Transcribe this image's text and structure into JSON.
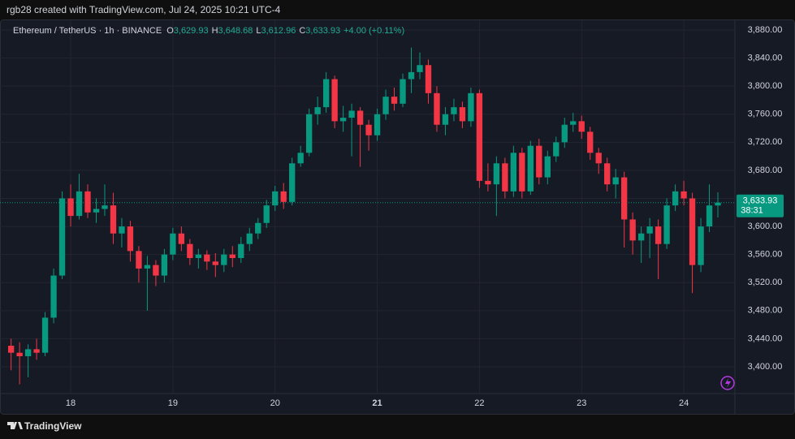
{
  "credit": "rgb28 created with TradingView.com, Jul 24, 2025 10:21 UTC-4",
  "brand": "TradingView",
  "chart_data": {
    "type": "candlestick",
    "symbol": "Ethereum / TetherUS · 1h · BINANCE",
    "legend": [
      {
        "key": "O",
        "value": "3,629.93"
      },
      {
        "key": "H",
        "value": "3,648.68"
      },
      {
        "key": "L",
        "value": "3,612.96"
      },
      {
        "key": "C",
        "value": "3,633.93"
      }
    ],
    "change": "+4.00 (+0.11%)",
    "up_color": "#089981",
    "down_color": "#f23645",
    "xlim": [
      -1.3,
      85
    ],
    "xticks": [
      {
        "value": 7,
        "label": "18"
      },
      {
        "value": 19,
        "label": "19"
      },
      {
        "value": 31,
        "label": "20"
      },
      {
        "value": 43,
        "label": "21"
      },
      {
        "value": 55,
        "label": "22"
      },
      {
        "value": 67,
        "label": "23"
      },
      {
        "value": 79,
        "label": "24"
      }
    ],
    "ylim": [
      3361.8,
      3893.9
    ],
    "yticks": [
      {
        "value": 3400,
        "label": "3,400.00"
      },
      {
        "value": 3440,
        "label": "3,440.00"
      },
      {
        "value": 3480,
        "label": "3,480.00"
      },
      {
        "value": 3520,
        "label": "3,520.00"
      },
      {
        "value": 3560,
        "label": "3,560.00"
      },
      {
        "value": 3600,
        "label": "3,600.00"
      },
      {
        "value": 3640,
        "label": "3,640.00"
      },
      {
        "value": 3680,
        "label": "3,680.00"
      },
      {
        "value": 3720,
        "label": "3,720.00"
      },
      {
        "value": 3760,
        "label": "3,760.00"
      },
      {
        "value": 3800,
        "label": "3,800.00"
      },
      {
        "value": 3840,
        "label": "3,840.00"
      },
      {
        "value": 3880,
        "label": "3,880.00"
      }
    ],
    "grid": true,
    "last_price": {
      "value": 3633.93,
      "label": "3,633.93"
    },
    "countdown": "38:31",
    "ohlc": [
      [
        3430,
        3440,
        3395,
        3420
      ],
      [
        3420,
        3435,
        3375,
        3415
      ],
      [
        3415,
        3432,
        3385,
        3425
      ],
      [
        3425,
        3440,
        3410,
        3420
      ],
      [
        3420,
        3478,
        3415,
        3470
      ],
      [
        3470,
        3540,
        3462,
        3530
      ],
      [
        3530,
        3650,
        3525,
        3640
      ],
      [
        3640,
        3660,
        3600,
        3615
      ],
      [
        3615,
        3675,
        3610,
        3650
      ],
      [
        3650,
        3660,
        3612,
        3620
      ],
      [
        3620,
        3640,
        3605,
        3625
      ],
      [
        3625,
        3660,
        3615,
        3630
      ],
      [
        3630,
        3648,
        3575,
        3590
      ],
      [
        3590,
        3612,
        3570,
        3600
      ],
      [
        3600,
        3608,
        3550,
        3565
      ],
      [
        3565,
        3572,
        3520,
        3540
      ],
      [
        3540,
        3558,
        3480,
        3545
      ],
      [
        3545,
        3552,
        3515,
        3530
      ],
      [
        3530,
        3568,
        3520,
        3560
      ],
      [
        3560,
        3598,
        3552,
        3590
      ],
      [
        3590,
        3600,
        3565,
        3575
      ],
      [
        3575,
        3582,
        3545,
        3555
      ],
      [
        3555,
        3568,
        3540,
        3560
      ],
      [
        3560,
        3566,
        3538,
        3550
      ],
      [
        3550,
        3562,
        3528,
        3545
      ],
      [
        3545,
        3568,
        3535,
        3560
      ],
      [
        3560,
        3572,
        3542,
        3555
      ],
      [
        3555,
        3585,
        3548,
        3575
      ],
      [
        3575,
        3598,
        3565,
        3590
      ],
      [
        3590,
        3612,
        3582,
        3605
      ],
      [
        3605,
        3638,
        3598,
        3630
      ],
      [
        3630,
        3658,
        3622,
        3650
      ],
      [
        3650,
        3662,
        3625,
        3635
      ],
      [
        3635,
        3698,
        3630,
        3690
      ],
      [
        3690,
        3715,
        3685,
        3705
      ],
      [
        3705,
        3768,
        3700,
        3760
      ],
      [
        3760,
        3785,
        3745,
        3770
      ],
      [
        3770,
        3820,
        3762,
        3810
      ],
      [
        3810,
        3815,
        3740,
        3750
      ],
      [
        3750,
        3772,
        3735,
        3755
      ],
      [
        3755,
        3775,
        3700,
        3765
      ],
      [
        3765,
        3770,
        3685,
        3745
      ],
      [
        3745,
        3752,
        3708,
        3730
      ],
      [
        3730,
        3768,
        3722,
        3760
      ],
      [
        3760,
        3795,
        3752,
        3785
      ],
      [
        3785,
        3798,
        3765,
        3775
      ],
      [
        3775,
        3818,
        3770,
        3810
      ],
      [
        3810,
        3855,
        3790,
        3820
      ],
      [
        3820,
        3848,
        3810,
        3830
      ],
      [
        3830,
        3838,
        3775,
        3790
      ],
      [
        3790,
        3800,
        3735,
        3745
      ],
      [
        3745,
        3770,
        3730,
        3760
      ],
      [
        3760,
        3782,
        3750,
        3770
      ],
      [
        3770,
        3778,
        3740,
        3750
      ],
      [
        3750,
        3798,
        3742,
        3790
      ],
      [
        3790,
        3795,
        3655,
        3665
      ],
      [
        3665,
        3690,
        3650,
        3660
      ],
      [
        3660,
        3700,
        3615,
        3690
      ],
      [
        3690,
        3698,
        3640,
        3650
      ],
      [
        3650,
        3715,
        3642,
        3705
      ],
      [
        3705,
        3712,
        3640,
        3650
      ],
      [
        3650,
        3722,
        3645,
        3715
      ],
      [
        3715,
        3725,
        3660,
        3670
      ],
      [
        3670,
        3708,
        3660,
        3700
      ],
      [
        3700,
        3728,
        3692,
        3720
      ],
      [
        3720,
        3755,
        3712,
        3745
      ],
      [
        3745,
        3762,
        3735,
        3750
      ],
      [
        3750,
        3758,
        3725,
        3735
      ],
      [
        3735,
        3742,
        3695,
        3705
      ],
      [
        3705,
        3712,
        3675,
        3690
      ],
      [
        3690,
        3698,
        3650,
        3660
      ],
      [
        3660,
        3682,
        3640,
        3670
      ],
      [
        3670,
        3678,
        3570,
        3610
      ],
      [
        3610,
        3620,
        3560,
        3580
      ],
      [
        3580,
        3600,
        3548,
        3590
      ],
      [
        3590,
        3612,
        3555,
        3600
      ],
      [
        3600,
        3610,
        3525,
        3575
      ],
      [
        3575,
        3640,
        3568,
        3630
      ],
      [
        3630,
        3660,
        3622,
        3650
      ],
      [
        3650,
        3665,
        3630,
        3640
      ],
      [
        3640,
        3648,
        3505,
        3545
      ],
      [
        3545,
        3612,
        3535,
        3600
      ],
      [
        3600,
        3660,
        3592,
        3629.93
      ],
      [
        3629.93,
        3648.68,
        3612.96,
        3633.93
      ]
    ]
  }
}
